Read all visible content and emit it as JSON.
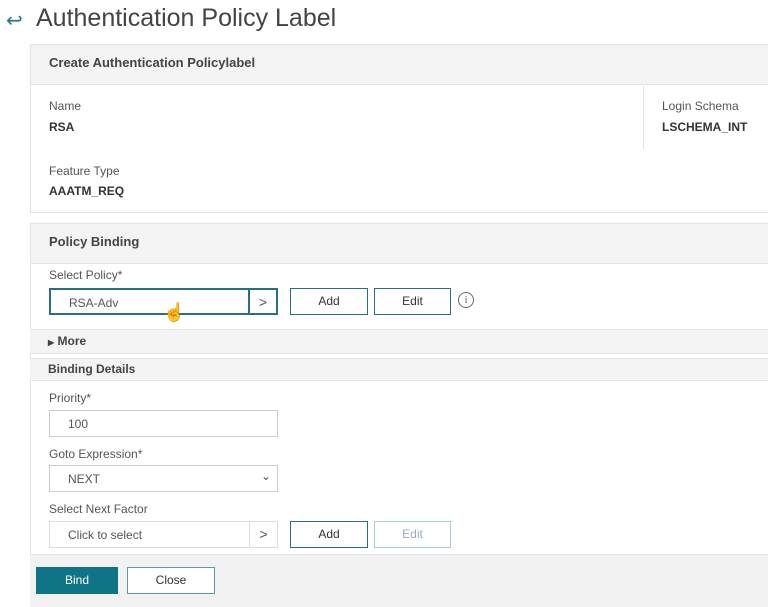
{
  "page": {
    "title": "Authentication Policy Label"
  },
  "create_section": {
    "header": "Create Authentication Policylabel",
    "name_label": "Name",
    "name_value": "RSA",
    "login_schema_label": "Login Schema",
    "login_schema_value": "LSCHEMA_INT",
    "feature_type_label": "Feature Type",
    "feature_type_value": "AAATM_REQ"
  },
  "policy_binding": {
    "header": "Policy Binding",
    "select_policy_label": "Select Policy*",
    "select_policy_value": "RSA-Adv",
    "add_label": "Add",
    "edit_label": "Edit",
    "more_label": "More"
  },
  "binding_details": {
    "header": "Binding Details",
    "priority_label": "Priority*",
    "priority_value": "100",
    "goto_label": "Goto Expression*",
    "goto_value": "NEXT",
    "next_factor_label": "Select Next Factor",
    "next_factor_placeholder": "Click to select",
    "add_label": "Add",
    "edit_label": "Edit"
  },
  "footer": {
    "bind_label": "Bind",
    "close_label": "Close"
  },
  "colors": {
    "accent": "#0e7486"
  }
}
